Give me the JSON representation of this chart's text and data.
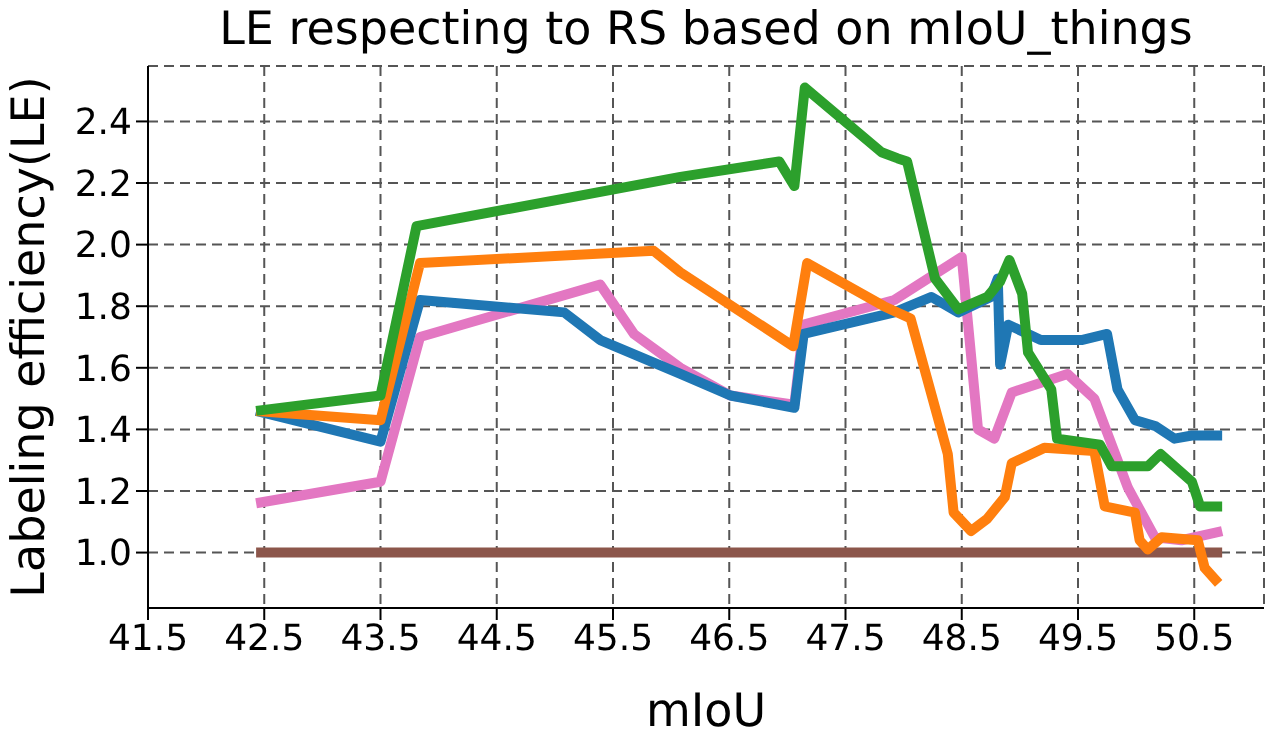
{
  "chart_data": {
    "type": "line",
    "title": "LE respecting to RS based on mIoU_things",
    "xlabel": "mIoU",
    "ylabel": "Labeling efficiency(LE)",
    "xlim": [
      41.5,
      51.1
    ],
    "ylim": [
      0.82,
      2.58
    ],
    "xticks": [
      41.5,
      42.5,
      43.5,
      44.5,
      45.5,
      46.5,
      47.5,
      48.5,
      49.5,
      50.5
    ],
    "yticks": [
      {
        "value": 1.0,
        "label": "1.0"
      },
      {
        "value": 1.2,
        "label": "1.2"
      },
      {
        "value": 1.4,
        "label": "1.4"
      },
      {
        "value": 1.6,
        "label": "1.6"
      },
      {
        "value": 1.8,
        "label": "1.8"
      },
      {
        "value": 2.0,
        "label": "2.0"
      },
      {
        "value": 2.2,
        "label": "2.2"
      },
      {
        "value": 2.4,
        "label": "2.4"
      }
    ],
    "grid": true,
    "marker": "none",
    "line_style": "solid",
    "series": [
      {
        "color": "#8c564b",
        "x": [
          42.43,
          50.74
        ],
        "values": [
          1.0,
          1.0
        ]
      },
      {
        "color": "#e377c2",
        "x": [
          42.43,
          43.5,
          43.84,
          45.39,
          45.68,
          46.08,
          46.51,
          47.06,
          47.14,
          47.92,
          48.5,
          48.64,
          48.78,
          48.93,
          49.41,
          49.64,
          49.93,
          50.16,
          50.39,
          50.74
        ],
        "values": [
          1.16,
          1.23,
          1.7,
          1.87,
          1.71,
          1.6,
          1.51,
          1.48,
          1.74,
          1.82,
          1.96,
          1.4,
          1.37,
          1.52,
          1.58,
          1.5,
          1.21,
          1.05,
          1.04,
          1.07
        ]
      },
      {
        "color": "#1f77b4",
        "x": [
          42.43,
          43.5,
          43.84,
          45.08,
          45.39,
          46.08,
          46.51,
          47.06,
          47.14,
          47.92,
          48.24,
          48.47,
          48.75,
          48.81,
          48.83,
          48.9,
          49.18,
          49.53,
          49.75,
          49.84,
          49.99,
          50.17,
          50.33,
          50.48,
          50.74
        ],
        "values": [
          1.46,
          1.36,
          1.82,
          1.78,
          1.69,
          1.58,
          1.51,
          1.47,
          1.71,
          1.78,
          1.83,
          1.78,
          1.83,
          1.89,
          1.61,
          1.74,
          1.69,
          1.69,
          1.71,
          1.53,
          1.43,
          1.41,
          1.37,
          1.38,
          1.38
        ]
      },
      {
        "color": "#ff7f0e",
        "x": [
          42.43,
          43.5,
          43.84,
          45.85,
          46.08,
          47.05,
          47.17,
          47.83,
          48.06,
          48.38,
          48.43,
          48.58,
          48.72,
          48.87,
          48.93,
          49.21,
          49.64,
          49.73,
          49.99,
          50.03,
          50.1,
          50.22,
          50.53,
          50.59,
          50.71
        ],
        "values": [
          1.46,
          1.43,
          1.94,
          1.98,
          1.91,
          1.67,
          1.94,
          1.8,
          1.76,
          1.32,
          1.13,
          1.07,
          1.11,
          1.18,
          1.29,
          1.34,
          1.33,
          1.15,
          1.13,
          1.04,
          1.01,
          1.05,
          1.04,
          0.95,
          0.9
        ]
      },
      {
        "color": "#2ca02c",
        "x": [
          42.43,
          43.5,
          43.81,
          46.08,
          46.93,
          47.06,
          47.15,
          47.81,
          47.95,
          48.03,
          48.27,
          48.47,
          48.72,
          48.83,
          48.91,
          49.02,
          49.07,
          49.27,
          49.32,
          49.69,
          49.79,
          50.1,
          50.21,
          50.48,
          50.55,
          50.74
        ],
        "values": [
          1.46,
          1.51,
          2.06,
          2.22,
          2.27,
          2.19,
          2.51,
          2.3,
          2.28,
          2.27,
          1.89,
          1.79,
          1.83,
          1.88,
          1.95,
          1.84,
          1.65,
          1.53,
          1.37,
          1.35,
          1.28,
          1.28,
          1.32,
          1.23,
          1.15,
          1.15
        ]
      }
    ]
  }
}
